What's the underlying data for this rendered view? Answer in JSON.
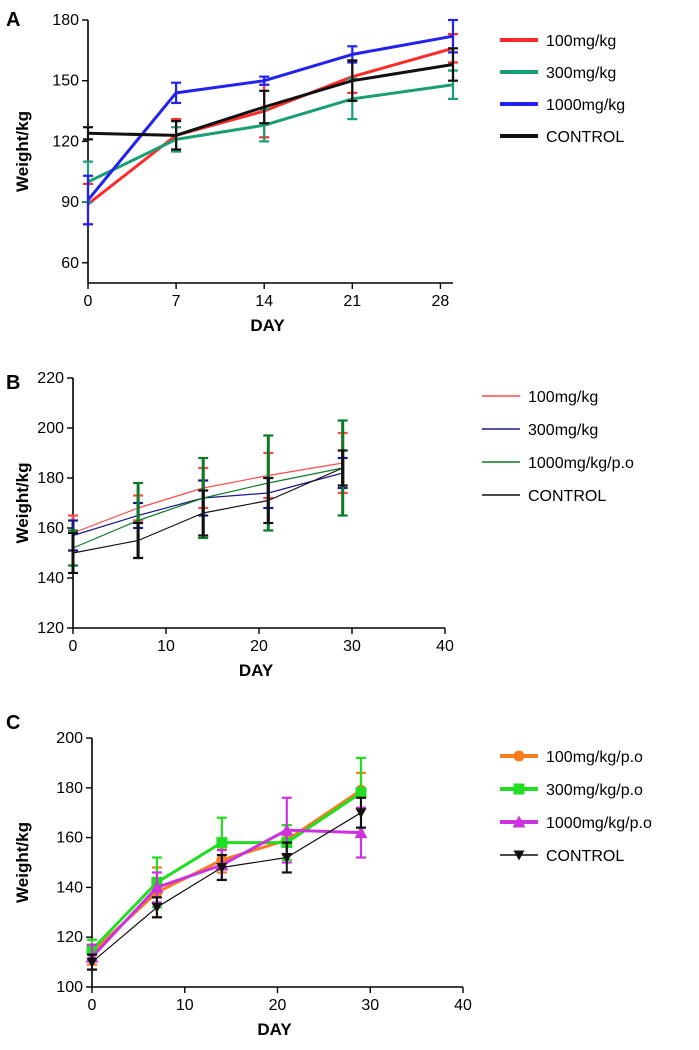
{
  "chart_data": [
    {
      "panel": "A",
      "type": "line",
      "xlabel": "DAY",
      "ylabel": "Weight/kg",
      "xlim": [
        0,
        29
      ],
      "ylim": [
        50,
        180
      ],
      "xticks": [
        0,
        7,
        14,
        21,
        28
      ],
      "yticks": [
        60,
        90,
        120,
        150,
        180
      ],
      "legend_position": "right",
      "series": [
        {
          "name": "100mg/kg",
          "color": "#ff2a2a",
          "width": 3,
          "marker": "none",
          "x": [
            0,
            7,
            14,
            21,
            29
          ],
          "y": [
            89,
            123,
            135,
            152,
            166
          ],
          "err": [
            10,
            8,
            13,
            8,
            7
          ]
        },
        {
          "name": "300mg/kg",
          "color": "#1a9e73",
          "width": 3,
          "marker": "none",
          "x": [
            0,
            7,
            14,
            21,
            29
          ],
          "y": [
            100,
            121,
            128,
            141,
            148
          ],
          "err": [
            10,
            6,
            8,
            10,
            7
          ]
        },
        {
          "name": "1000mg/kg",
          "color": "#2222ee",
          "width": 3,
          "marker": "none",
          "x": [
            0,
            7,
            14,
            21,
            29
          ],
          "y": [
            91,
            144,
            150,
            163,
            172
          ],
          "err": [
            12,
            5,
            2,
            4,
            8
          ]
        },
        {
          "name": "CONTROL",
          "color": "#111111",
          "width": 3,
          "marker": "none",
          "x": [
            0,
            7,
            14,
            21,
            29
          ],
          "y": [
            124,
            123,
            137,
            150,
            158
          ],
          "err": [
            3,
            7,
            8,
            10,
            8
          ]
        }
      ]
    },
    {
      "panel": "B",
      "type": "line",
      "xlabel": "DAY",
      "ylabel": "Weight/kg",
      "xlim": [
        0,
        40
      ],
      "ylim": [
        120,
        220
      ],
      "xticks": [
        0,
        10,
        20,
        30,
        40
      ],
      "yticks": [
        120,
        140,
        160,
        180,
        200,
        220
      ],
      "legend_position": "right",
      "series": [
        {
          "name": "100mg/kg",
          "color": "#ff4a4a",
          "width": 1.2,
          "marker": "none",
          "x": [
            0,
            7,
            14,
            21,
            29
          ],
          "y": [
            158,
            168,
            176,
            181,
            186
          ],
          "err": [
            7,
            5,
            8,
            9,
            12
          ]
        },
        {
          "name": "300mg/kg",
          "color": "#1a1a8a",
          "width": 1.2,
          "marker": "none",
          "x": [
            0,
            7,
            14,
            21,
            29
          ],
          "y": [
            157,
            165,
            172,
            174,
            182
          ],
          "err": [
            6,
            5,
            7,
            6,
            6
          ]
        },
        {
          "name": "1000mg/kg/p.o",
          "color": "#0d7a28",
          "width": 1.2,
          "marker": "none",
          "x": [
            0,
            7,
            14,
            21,
            29
          ],
          "y": [
            152,
            163,
            172,
            178,
            184
          ],
          "err": [
            7,
            15,
            16,
            19,
            19
          ]
        },
        {
          "name": "CONTROL",
          "color": "#111111",
          "width": 1.2,
          "marker": "none",
          "x": [
            0,
            7,
            14,
            21,
            29
          ],
          "y": [
            150,
            155,
            166,
            171,
            184
          ],
          "err": [
            8,
            7,
            9,
            9,
            7
          ]
        }
      ]
    },
    {
      "panel": "C",
      "type": "line",
      "xlabel": "DAY",
      "ylabel": "Weight/kg",
      "xlim": [
        0,
        40
      ],
      "ylim": [
        100,
        200
      ],
      "xticks": [
        0,
        10,
        20,
        30,
        40
      ],
      "yticks": [
        100,
        120,
        140,
        160,
        180,
        200
      ],
      "legend_position": "right",
      "series": [
        {
          "name": "100mg/kg/p.o",
          "color": "#f57c1f",
          "width": 3,
          "marker": "circle",
          "x": [
            0,
            7,
            14,
            21,
            29
          ],
          "y": [
            114,
            138,
            151,
            159,
            179
          ],
          "err": [
            5,
            10,
            5,
            6,
            7
          ]
        },
        {
          "name": "300mg/kg/p.o",
          "color": "#22dd22",
          "width": 3,
          "marker": "square",
          "x": [
            0,
            7,
            14,
            21,
            29
          ],
          "y": [
            115,
            142,
            158,
            158,
            178
          ],
          "err": [
            4,
            10,
            10,
            7,
            14
          ]
        },
        {
          "name": "1000mg/kg/p.o",
          "color": "#cc33dd",
          "width": 3,
          "marker": "triangle-up",
          "x": [
            0,
            7,
            14,
            21,
            29
          ],
          "y": [
            112,
            140,
            149,
            163,
            162
          ],
          "err": [
            5,
            6,
            6,
            13,
            10
          ]
        },
        {
          "name": "CONTROL",
          "color": "#111111",
          "width": 1.2,
          "marker": "triangle-down",
          "x": [
            0,
            7,
            14,
            21,
            29
          ],
          "y": [
            110,
            132,
            148,
            152,
            170
          ],
          "err": [
            3,
            4,
            5,
            6,
            6
          ]
        }
      ]
    }
  ]
}
